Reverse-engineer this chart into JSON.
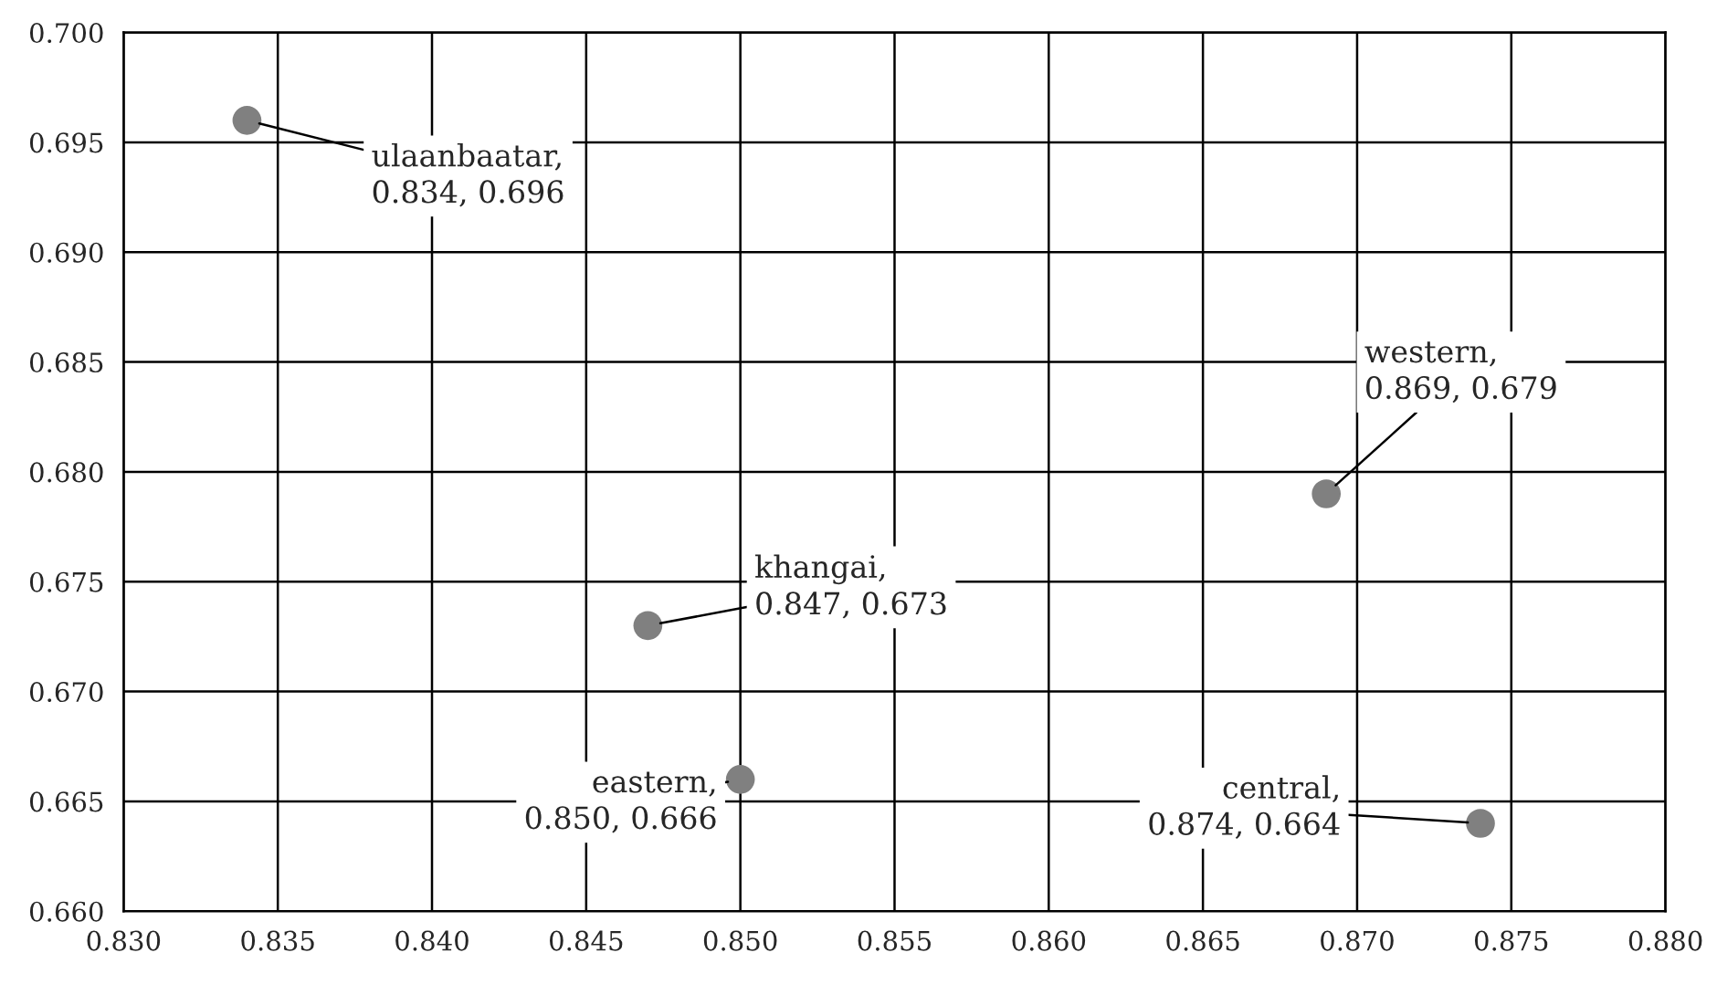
{
  "chart_data": {
    "type": "scatter",
    "x": [
      0.834,
      0.847,
      0.869,
      0.85,
      0.874
    ],
    "series": [
      {
        "color": "#808080",
        "values": [
          0.696,
          0.673,
          0.679,
          0.666,
          0.664
        ]
      }
    ],
    "marker": "circle",
    "xlim": [
      0.83,
      0.88
    ],
    "ylim": [
      0.66,
      0.7
    ],
    "xticks": [
      {
        "value": 0.83,
        "label": "0.830"
      },
      {
        "value": 0.835,
        "label": "0.835"
      },
      {
        "value": 0.84,
        "label": "0.840"
      },
      {
        "value": 0.845,
        "label": "0.845"
      },
      {
        "value": 0.85,
        "label": "0.850"
      },
      {
        "value": 0.855,
        "label": "0.855"
      },
      {
        "value": 0.86,
        "label": "0.860"
      },
      {
        "value": 0.865,
        "label": "0.865"
      },
      {
        "value": 0.87,
        "label": "0.870"
      },
      {
        "value": 0.875,
        "label": "0.875"
      },
      {
        "value": 0.88,
        "label": "0.880"
      }
    ],
    "yticks": [
      {
        "value": 0.66,
        "label": "0.660"
      },
      {
        "value": 0.665,
        "label": "0.665"
      },
      {
        "value": 0.67,
        "label": "0.670"
      },
      {
        "value": 0.675,
        "label": "0.675"
      },
      {
        "value": 0.68,
        "label": "0.680"
      },
      {
        "value": 0.685,
        "label": "0.685"
      },
      {
        "value": 0.69,
        "label": "0.690"
      },
      {
        "value": 0.695,
        "label": "0.695"
      },
      {
        "value": 0.7,
        "label": "0.700"
      }
    ],
    "grid": true,
    "annotations": [
      {
        "text": "ulaanbaatar,\n0.834, 0.696",
        "x": 0.834,
        "y": 0.696
      },
      {
        "text": "khangai,\n0.847, 0.673",
        "x": 0.847,
        "y": 0.673
      },
      {
        "text": "western,\n0.869, 0.679",
        "x": 0.869,
        "y": 0.679
      },
      {
        "text": "eastern,\n0.850, 0.666",
        "x": 0.85,
        "y": 0.666
      },
      {
        "text": "central,\n0.874, 0.664",
        "x": 0.874,
        "y": 0.664
      }
    ]
  }
}
